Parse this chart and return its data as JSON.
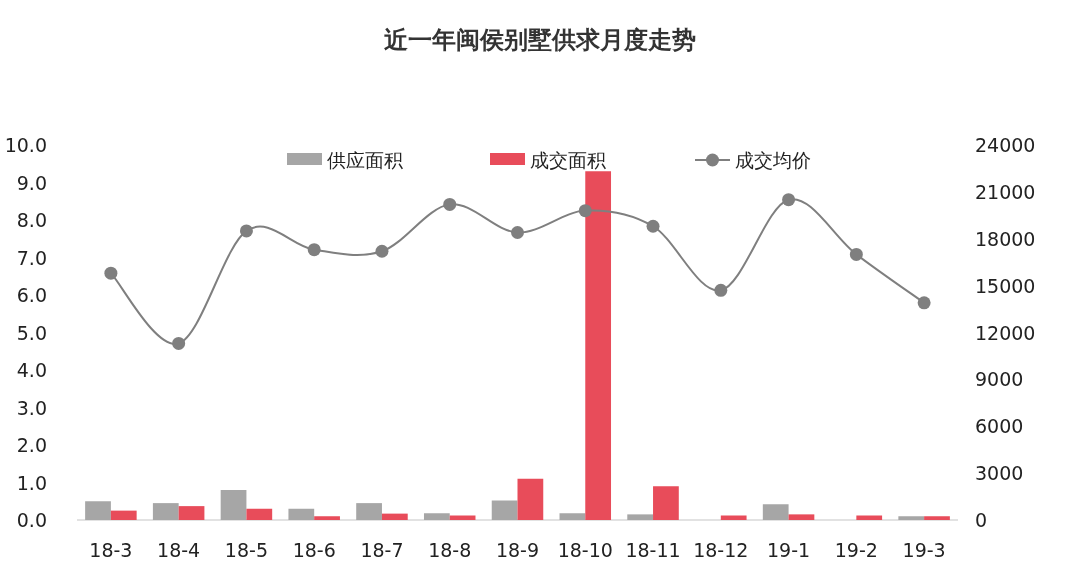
{
  "chart_data": {
    "type": "bar",
    "title": "近一年闽侯别墅供求月度走势",
    "categories": [
      "18-3",
      "18-4",
      "18-5",
      "18-6",
      "18-7",
      "18-8",
      "18-9",
      "18-10",
      "18-11",
      "18-12",
      "19-1",
      "19-2",
      "19-3"
    ],
    "series": [
      {
        "name": "供应面积",
        "color": "#a6a6a6",
        "values": [
          0.5,
          0.45,
          0.8,
          0.3,
          0.45,
          0.18,
          0.52,
          0.18,
          0.15,
          0,
          0.42,
          0,
          0.1
        ]
      },
      {
        "name": "成交面积",
        "color": "#e84c5a",
        "values": [
          0.25,
          0.37,
          0.3,
          0.1,
          0.17,
          0.12,
          1.1,
          9.3,
          0.9,
          0.12,
          0.15,
          0.12,
          0.1
        ]
      },
      {
        "name": "成交均价",
        "type": "line",
        "axis": "y2",
        "color": "#7f7f7f",
        "marker": "circle",
        "values": [
          15800,
          11300,
          18500,
          17300,
          17200,
          20200,
          18400,
          19800,
          18800,
          14700,
          20500,
          17000,
          13900
        ]
      }
    ],
    "ylim": [
      0,
      10
    ],
    "yticks": [
      {
        "value": 0,
        "label": "0.0"
      },
      {
        "value": 1,
        "label": "1.0"
      },
      {
        "value": 2,
        "label": "2.0"
      },
      {
        "value": 3,
        "label": "3.0"
      },
      {
        "value": 4,
        "label": "4.0"
      },
      {
        "value": 5,
        "label": "5.0"
      },
      {
        "value": 6,
        "label": "6.0"
      },
      {
        "value": 7,
        "label": "7.0"
      },
      {
        "value": 8,
        "label": "8.0"
      },
      {
        "value": 9,
        "label": "9.0"
      },
      {
        "value": 10,
        "label": "10.0"
      }
    ],
    "y2lim": [
      0,
      24000
    ],
    "y2ticks": [
      0,
      3000,
      6000,
      9000,
      12000,
      15000,
      18000,
      21000,
      24000
    ],
    "legend": "top"
  }
}
